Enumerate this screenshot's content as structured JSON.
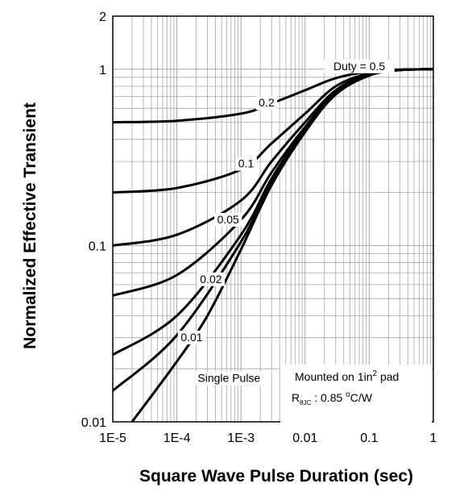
{
  "chart_data": {
    "type": "line",
    "title": "",
    "xlabel": "Square Wave Pulse Duration (sec)",
    "ylabel": "Normalized Effective Transient",
    "x_scale": "log",
    "y_scale": "log",
    "xlim": [
      1e-05,
      1
    ],
    "ylim": [
      0.01,
      2
    ],
    "grid": true,
    "x_ticks": [
      {
        "value": 1e-05,
        "label": "1E-5"
      },
      {
        "value": 0.0001,
        "label": "1E-4"
      },
      {
        "value": 0.001,
        "label": "1E-3"
      },
      {
        "value": 0.01,
        "label": "0.01"
      },
      {
        "value": 0.1,
        "label": "0.1"
      },
      {
        "value": 1,
        "label": "1"
      }
    ],
    "y_ticks": [
      {
        "value": 0.01,
        "label": "0.01"
      },
      {
        "value": 0.1,
        "label": "0.1"
      },
      {
        "value": 1,
        "label": "1"
      },
      {
        "value": 2,
        "label": "2"
      }
    ],
    "series": [
      {
        "name": "Duty = 0.5",
        "x": [
          1e-05,
          0.0001,
          0.001,
          0.003,
          0.01,
          0.03,
          0.1,
          0.3,
          1
        ],
        "y": [
          0.5,
          0.51,
          0.56,
          0.64,
          0.76,
          0.89,
          0.97,
          0.995,
          1.0
        ]
      },
      {
        "name": "0.2",
        "x": [
          1e-05,
          0.0001,
          0.001,
          0.003,
          0.01,
          0.03,
          0.1,
          0.3,
          1
        ],
        "y": [
          0.2,
          0.212,
          0.27,
          0.38,
          0.56,
          0.8,
          0.95,
          0.99,
          1.0
        ]
      },
      {
        "name": "0.1",
        "x": [
          1e-05,
          0.0001,
          0.001,
          0.003,
          0.01,
          0.03,
          0.1,
          0.3,
          1
        ],
        "y": [
          0.1,
          0.115,
          0.18,
          0.3,
          0.5,
          0.76,
          0.94,
          0.99,
          1.0
        ]
      },
      {
        "name": "0.05",
        "x": [
          1e-05,
          0.0001,
          0.001,
          0.003,
          0.01,
          0.03,
          0.1,
          0.3,
          1
        ],
        "y": [
          0.052,
          0.068,
          0.14,
          0.26,
          0.47,
          0.74,
          0.93,
          0.99,
          1.0
        ]
      },
      {
        "name": "0.02",
        "x": [
          1e-05,
          0.0001,
          0.001,
          0.003,
          0.01,
          0.03,
          0.1,
          0.3,
          1
        ],
        "y": [
          0.024,
          0.04,
          0.115,
          0.24,
          0.455,
          0.73,
          0.93,
          0.99,
          1.0
        ]
      },
      {
        "name": "0.01",
        "x": [
          1e-05,
          0.0001,
          0.001,
          0.003,
          0.01,
          0.03,
          0.1,
          0.3,
          1
        ],
        "y": [
          0.015,
          0.031,
          0.105,
          0.23,
          0.45,
          0.72,
          0.925,
          0.99,
          1.0
        ]
      },
      {
        "name": "Single Pulse",
        "x": [
          2e-05,
          0.0001,
          0.0003,
          0.001,
          0.003,
          0.01,
          0.03,
          0.1,
          0.3,
          1
        ],
        "y": [
          0.01,
          0.022,
          0.04,
          0.095,
          0.22,
          0.44,
          0.72,
          0.92,
          0.99,
          1.0
        ]
      }
    ],
    "curve_labels": [
      {
        "text": "Duty =  0.5",
        "x": 0.07,
        "y": 1.0
      },
      {
        "text": "0.2",
        "x": 0.0025,
        "y": 0.62
      },
      {
        "text": "0.1",
        "x": 0.0012,
        "y": 0.28
      },
      {
        "text": "0.05",
        "x": 0.00063,
        "y": 0.135
      },
      {
        "text": "0.02",
        "x": 0.00034,
        "y": 0.062
      },
      {
        "text": "0.01",
        "x": 0.00017,
        "y": 0.029
      },
      {
        "text": "Single Pulse",
        "x": 0.00065,
        "y": 0.017
      }
    ],
    "annotation": {
      "line1_pre": "Mounted on 1in",
      "line1_sup": "2",
      "line1_post": " pad",
      "line2_r": "R",
      "line2_sub": "θJC",
      "line2_post": " : 0.85 ",
      "line2_deg": "o",
      "line2_unit": "C/W"
    }
  }
}
